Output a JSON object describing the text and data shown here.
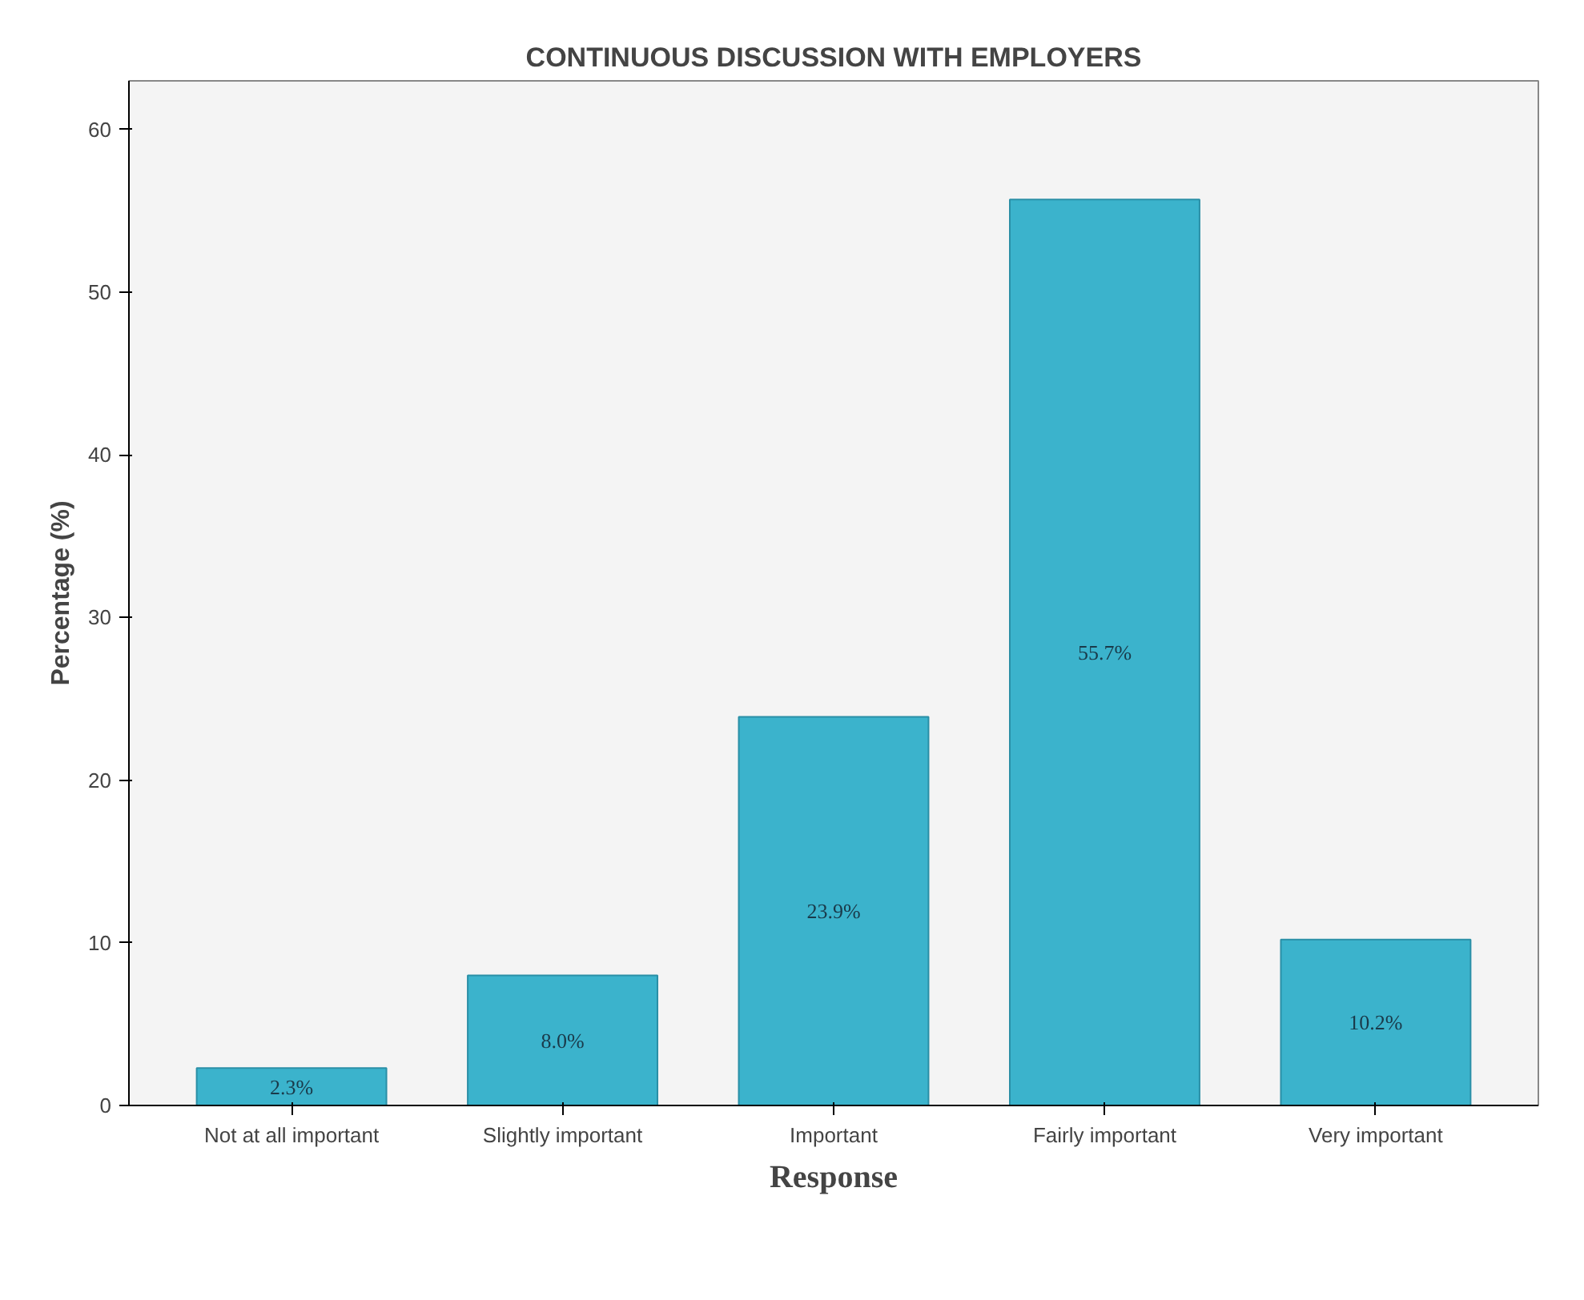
{
  "chart_data": {
    "type": "bar",
    "title": "CONTINUOUS DISCUSSION WITH EMPLOYERS",
    "xlabel": "Response",
    "ylabel": "Percentage (%)",
    "categories": [
      "Not at all important",
      "Slightly important",
      "Important",
      "Fairly important",
      "Very important"
    ],
    "values": [
      2.3,
      8.0,
      23.9,
      55.7,
      10.2
    ],
    "value_labels": [
      "2.3%",
      "8.0%",
      "23.9%",
      "55.7%",
      "10.2%"
    ],
    "color": "#3bb3cc",
    "ylim": [
      0,
      63
    ],
    "yticks": [
      0,
      10,
      20,
      30,
      40,
      50,
      60
    ],
    "grid": false
  }
}
